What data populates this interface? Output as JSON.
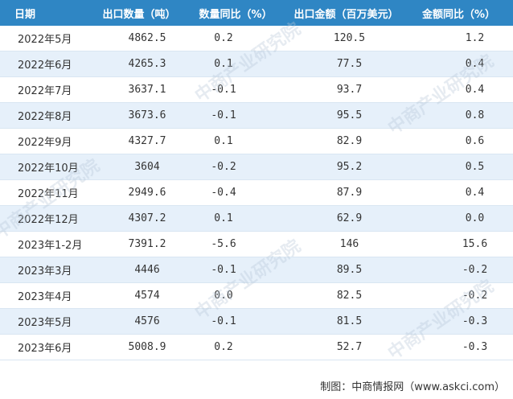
{
  "table": {
    "headers": [
      "日期",
      "出口数量（吨）",
      "数量同比（%）",
      "出口金额（百万美元）",
      "金额同比（%）"
    ],
    "rows": [
      [
        "2022年5月",
        "4862.5",
        "0.2",
        "120.5",
        "1.2"
      ],
      [
        "2022年6月",
        "4265.3",
        "0.1",
        "77.5",
        "0.4"
      ],
      [
        "2022年7月",
        "3637.1",
        "-0.1",
        "93.7",
        "0.4"
      ],
      [
        "2022年8月",
        "3673.6",
        "-0.1",
        "95.5",
        "0.8"
      ],
      [
        "2022年9月",
        "4327.7",
        "0.1",
        "82.9",
        "0.6"
      ],
      [
        "2022年10月",
        "3604",
        "-0.2",
        "95.2",
        "0.5"
      ],
      [
        "2022年11月",
        "2949.6",
        "-0.4",
        "87.9",
        "0.4"
      ],
      [
        "2022年12月",
        "4307.2",
        "0.1",
        "62.9",
        "0.0"
      ],
      [
        "2023年1-2月",
        "7391.2",
        "-5.6",
        "146",
        "15.6"
      ],
      [
        "2023年3月",
        "4446",
        "-0.1",
        "89.5",
        "-0.2"
      ],
      [
        "2023年4月",
        "4574",
        "0.0",
        "82.5",
        "-0.2"
      ],
      [
        "2023年5月",
        "4576",
        "-0.1",
        "81.5",
        "-0.3"
      ],
      [
        "2023年6月",
        "5008.9",
        "0.2",
        "52.7",
        "-0.3"
      ]
    ]
  },
  "footer": "制图：中商情报网（www.askci.com）",
  "watermark": "中商产业研究院",
  "colors": {
    "header_bg": "#2f86c4",
    "alt_row_bg": "#e6f0fa"
  }
}
